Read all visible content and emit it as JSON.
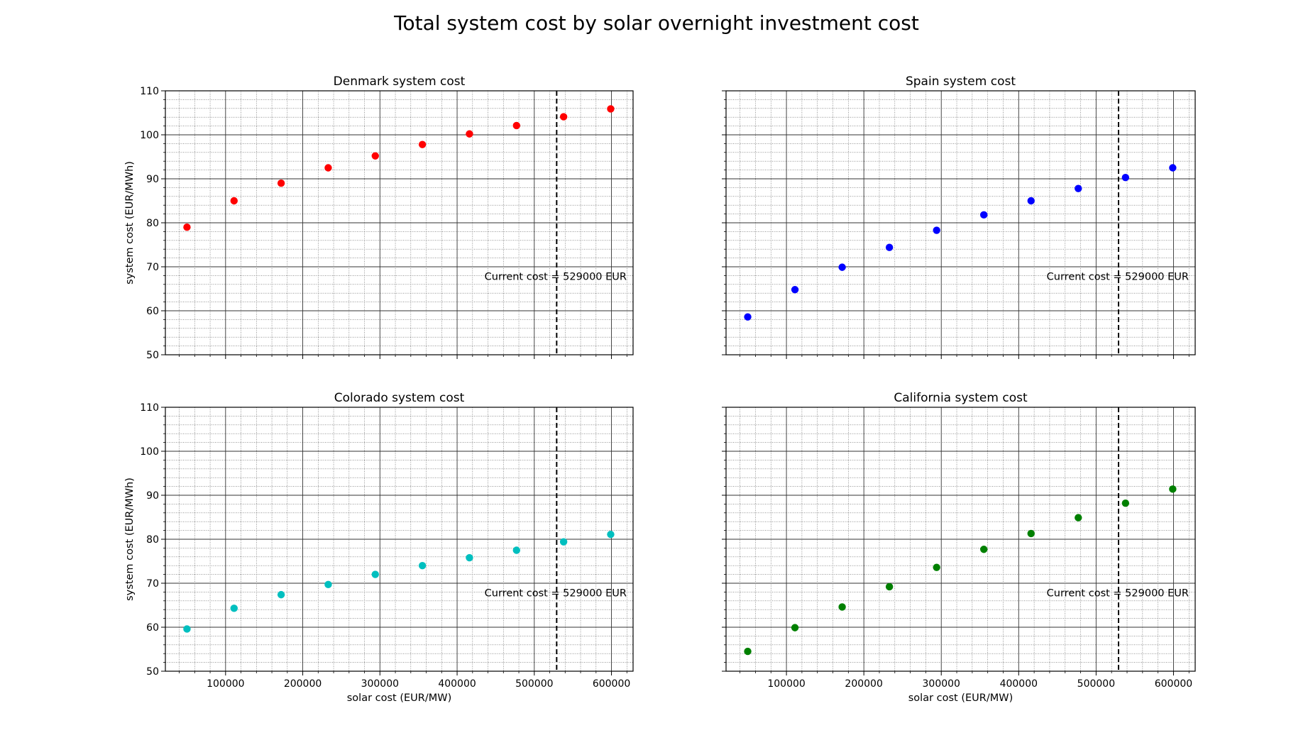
{
  "figure": {
    "suptitle": "Total system cost by solar overnight investment cost"
  },
  "chart_data": [
    {
      "type": "scatter",
      "title": "Denmark system cost",
      "xlabel": "",
      "ylabel": "system cost (EUR/MWh)",
      "xlim": [
        22000,
        628000
      ],
      "ylim": [
        50,
        110
      ],
      "x_ticks": [],
      "y_ticks": [
        50,
        60,
        70,
        80,
        90,
        100,
        110
      ],
      "grid": true,
      "minor_grid": true,
      "series": [
        {
          "color": "#ff0000",
          "x": [
            50000,
            111000,
            172000,
            233000,
            294000,
            355000,
            416000,
            477000,
            538000,
            599000
          ],
          "y": [
            79.0,
            85.0,
            89.0,
            92.5,
            95.2,
            97.8,
            100.2,
            102.1,
            104.1,
            105.9
          ]
        }
      ],
      "vline": {
        "x": 529000,
        "style": "dashed",
        "label": "Current cost = 529000 EUR"
      }
    },
    {
      "type": "scatter",
      "title": "Spain system cost",
      "xlabel": "",
      "ylabel": "",
      "xlim": [
        22000,
        628000
      ],
      "ylim": [
        50,
        110
      ],
      "x_ticks": [],
      "y_ticks": [],
      "grid": true,
      "minor_grid": true,
      "series": [
        {
          "color": "#0000ff",
          "x": [
            50000,
            111000,
            172000,
            233000,
            294000,
            355000,
            416000,
            477000,
            538000,
            599000
          ],
          "y": [
            58.6,
            64.8,
            69.9,
            74.4,
            78.3,
            81.8,
            85.0,
            87.8,
            90.3,
            92.5
          ]
        }
      ],
      "vline": {
        "x": 529000,
        "style": "dashed",
        "label": "Current cost = 529000 EUR"
      }
    },
    {
      "type": "scatter",
      "title": "Colorado system cost",
      "xlabel": "solar cost (EUR/MW)",
      "ylabel": "system cost (EUR/MWh)",
      "xlim": [
        22000,
        628000
      ],
      "ylim": [
        50,
        110
      ],
      "x_ticks": [
        100000,
        200000,
        300000,
        400000,
        500000,
        600000
      ],
      "y_ticks": [
        50,
        60,
        70,
        80,
        90,
        100,
        110
      ],
      "grid": true,
      "minor_grid": true,
      "series": [
        {
          "color": "#00bfbf",
          "x": [
            50000,
            111000,
            172000,
            233000,
            294000,
            355000,
            416000,
            477000,
            538000,
            599000
          ],
          "y": [
            59.6,
            64.3,
            67.4,
            69.7,
            72.0,
            74.0,
            75.8,
            77.5,
            79.4,
            81.1
          ]
        }
      ],
      "vline": {
        "x": 529000,
        "style": "dashed",
        "label": "Current cost = 529000 EUR"
      }
    },
    {
      "type": "scatter",
      "title": "California system cost",
      "xlabel": "solar cost (EUR/MW)",
      "ylabel": "",
      "xlim": [
        22000,
        628000
      ],
      "ylim": [
        50,
        110
      ],
      "x_ticks": [
        100000,
        200000,
        300000,
        400000,
        500000,
        600000
      ],
      "y_ticks": [],
      "grid": true,
      "minor_grid": true,
      "series": [
        {
          "color": "#008000",
          "x": [
            50000,
            111000,
            172000,
            233000,
            294000,
            355000,
            416000,
            477000,
            538000,
            599000
          ],
          "y": [
            54.5,
            59.9,
            64.6,
            69.2,
            73.6,
            77.7,
            81.3,
            84.9,
            88.2,
            91.4
          ]
        }
      ],
      "vline": {
        "x": 529000,
        "style": "dashed",
        "label": "Current cost = 529000 EUR"
      }
    }
  ]
}
